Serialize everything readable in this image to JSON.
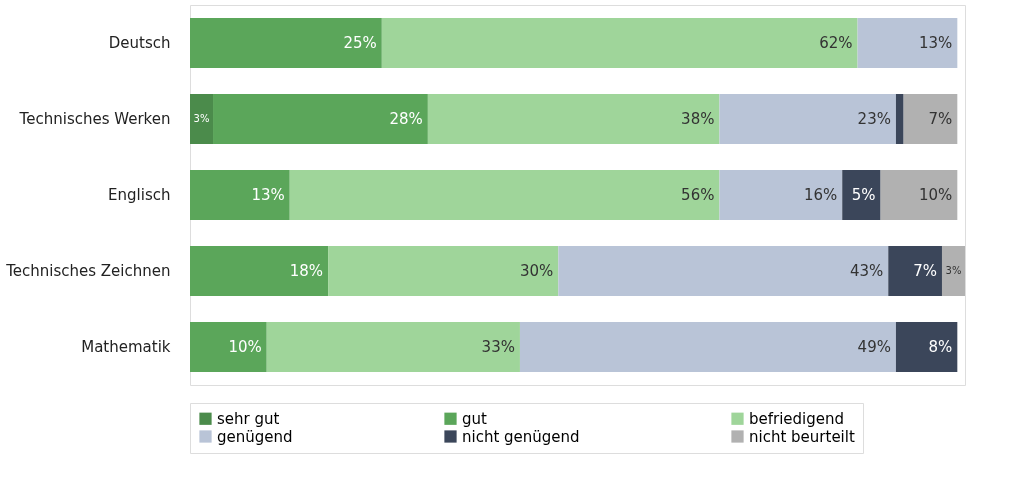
{
  "chart_data": {
    "type": "bar",
    "orientation": "horizontal",
    "stacked": true,
    "legend": "bottom",
    "categories": [
      "Deutsch",
      "Technisches Werken",
      "Englisch",
      "Technisches Zeichnen",
      "Mathematik"
    ],
    "series": [
      {
        "name": "sehr gut",
        "color": "#4b8b4b",
        "values": [
          null,
          3,
          null,
          null,
          null
        ],
        "value_labels": [
          null,
          "3%",
          null,
          null,
          null
        ]
      },
      {
        "name": "gut",
        "color": "#5ba65a",
        "values": [
          25,
          28,
          13,
          18,
          10
        ],
        "value_labels": [
          "25%",
          "28%",
          "13%",
          "18%",
          "10%"
        ]
      },
      {
        "name": "befriedigend",
        "color": "#9fd59a",
        "values": [
          62,
          38,
          56,
          30,
          33
        ],
        "value_labels": [
          "62%",
          "38%",
          "56%",
          "30%",
          "33%"
        ]
      },
      {
        "name": "genügend",
        "color": "#b9c4d7",
        "values": [
          13,
          23,
          16,
          43,
          49
        ],
        "value_labels": [
          "13%",
          "23%",
          "16%",
          "43%",
          "49%"
        ]
      },
      {
        "name": "nicht genügend",
        "color": "#3b465a",
        "values": [
          null,
          1,
          5,
          7,
          8
        ],
        "value_labels": [
          null,
          null,
          "5%",
          "7%",
          "8%"
        ]
      },
      {
        "name": "nicht beurteilt",
        "color": "#b1b1b1",
        "values": [
          null,
          7,
          10,
          3,
          null
        ],
        "value_labels": [
          null,
          "7%",
          "10%",
          "3%",
          null
        ]
      }
    ]
  }
}
